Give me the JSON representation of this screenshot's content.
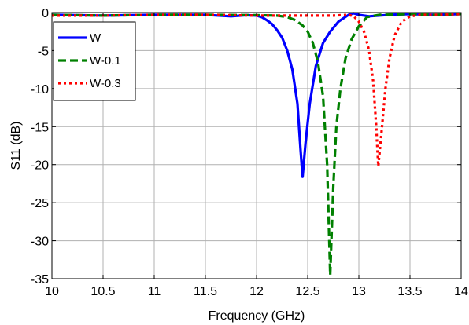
{
  "chart_data": {
    "type": "line",
    "xlabel": "Frequency (GHz)",
    "ylabel": "S11 (dB)",
    "xlim": [
      10,
      14
    ],
    "ylim": [
      -35,
      0
    ],
    "x_ticks": [
      10,
      10.5,
      11,
      11.5,
      12,
      12.5,
      13,
      13.5,
      14
    ],
    "x_tick_labels": [
      "10",
      "10.5",
      "11",
      "11.5",
      "12",
      "12.5",
      "13",
      "13.5",
      "14"
    ],
    "y_ticks": [
      0,
      -5,
      -10,
      -15,
      -20,
      -25,
      -30,
      -35
    ],
    "y_tick_labels": [
      "0",
      "-5",
      "-10",
      "-15",
      "-20",
      "-25",
      "-30",
      "-35"
    ],
    "grid": true,
    "legend_position": "top-left",
    "series": [
      {
        "name": "W",
        "color": "#0000ff",
        "style": "solid",
        "points": [
          [
            10.0,
            -0.3
          ],
          [
            10.5,
            -0.4
          ],
          [
            11.0,
            -0.3
          ],
          [
            11.5,
            -0.3
          ],
          [
            11.75,
            -0.5
          ],
          [
            11.9,
            -0.35
          ],
          [
            12.0,
            -0.4
          ],
          [
            12.05,
            -0.6
          ],
          [
            12.1,
            -1.0
          ],
          [
            12.15,
            -1.5
          ],
          [
            12.2,
            -2.3
          ],
          [
            12.25,
            -3.3
          ],
          [
            12.3,
            -5.0
          ],
          [
            12.35,
            -7.5
          ],
          [
            12.4,
            -12.0
          ],
          [
            12.43,
            -18.0
          ],
          [
            12.45,
            -21.6
          ],
          [
            12.48,
            -17.0
          ],
          [
            12.52,
            -12.0
          ],
          [
            12.58,
            -7.0
          ],
          [
            12.65,
            -4.0
          ],
          [
            12.72,
            -2.5
          ],
          [
            12.8,
            -1.2
          ],
          [
            12.9,
            -0.3
          ],
          [
            12.95,
            -0.1
          ],
          [
            13.0,
            -0.3
          ],
          [
            13.1,
            -0.5
          ],
          [
            13.3,
            -0.3
          ],
          [
            13.5,
            -0.2
          ],
          [
            13.75,
            -0.3
          ],
          [
            14.0,
            -0.2
          ]
        ]
      },
      {
        "name": "W-0.1",
        "color": "#008000",
        "style": "dashed",
        "points": [
          [
            10.0,
            -0.3
          ],
          [
            10.5,
            -0.4
          ],
          [
            11.0,
            -0.3
          ],
          [
            11.5,
            -0.3
          ],
          [
            12.0,
            -0.35
          ],
          [
            12.2,
            -0.4
          ],
          [
            12.3,
            -0.6
          ],
          [
            12.38,
            -1.0
          ],
          [
            12.45,
            -1.7
          ],
          [
            12.5,
            -2.5
          ],
          [
            12.55,
            -4.0
          ],
          [
            12.6,
            -6.5
          ],
          [
            12.65,
            -11.0
          ],
          [
            12.69,
            -20.0
          ],
          [
            12.72,
            -34.5
          ],
          [
            12.75,
            -23.0
          ],
          [
            12.78,
            -15.0
          ],
          [
            12.82,
            -10.0
          ],
          [
            12.87,
            -6.0
          ],
          [
            12.93,
            -3.5
          ],
          [
            13.0,
            -1.8
          ],
          [
            13.08,
            -0.6
          ],
          [
            13.2,
            -0.3
          ],
          [
            13.5,
            -0.2
          ],
          [
            13.75,
            -0.3
          ],
          [
            14.0,
            -0.2
          ]
        ]
      },
      {
        "name": "W-0.3",
        "color": "#ff0000",
        "style": "dotted",
        "points": [
          [
            10.0,
            -0.4
          ],
          [
            10.5,
            -0.4
          ],
          [
            11.0,
            -0.3
          ],
          [
            11.5,
            -0.3
          ],
          [
            12.0,
            -0.4
          ],
          [
            12.5,
            -0.4
          ],
          [
            12.75,
            -0.4
          ],
          [
            12.9,
            -0.3
          ],
          [
            12.95,
            -0.5
          ],
          [
            13.0,
            -1.2
          ],
          [
            13.05,
            -2.5
          ],
          [
            13.1,
            -5.0
          ],
          [
            13.14,
            -9.0
          ],
          [
            13.17,
            -15.0
          ],
          [
            13.19,
            -20.2
          ],
          [
            13.22,
            -16.0
          ],
          [
            13.26,
            -10.0
          ],
          [
            13.3,
            -6.0
          ],
          [
            13.35,
            -3.0
          ],
          [
            13.42,
            -1.2
          ],
          [
            13.5,
            -0.5
          ],
          [
            13.6,
            -0.3
          ],
          [
            13.75,
            -0.3
          ],
          [
            14.0,
            -0.2
          ]
        ]
      }
    ]
  }
}
